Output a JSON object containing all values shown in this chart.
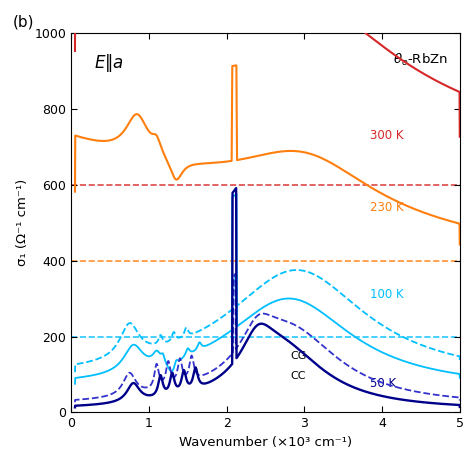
{
  "title_annotation": "(b)",
  "xlabel": "Wavenumber (×10³ cm⁻¹)",
  "ylabel": "σ₁ (Ω⁻¹ cm⁻¹)",
  "xlim": [
    0,
    5
  ],
  "ylim": [
    0,
    1000
  ],
  "xticks": [
    0,
    1,
    2,
    3,
    4,
    5
  ],
  "xticklabels": [
    "0",
    "1",
    "2",
    "3",
    "4",
    "5"
  ],
  "yticks": [
    0,
    200,
    400,
    600,
    800,
    1000
  ],
  "colors": {
    "300K": "#d62728",
    "230K": "#ff7f0e",
    "100K": "#00bfff",
    "50K_CG": "#3333cc",
    "50K_CC": "#00008b"
  },
  "dashed_lines": {
    "300K_y": 600,
    "230K_y": 400,
    "100K_y": 200
  },
  "bg_color": "#ffffff"
}
